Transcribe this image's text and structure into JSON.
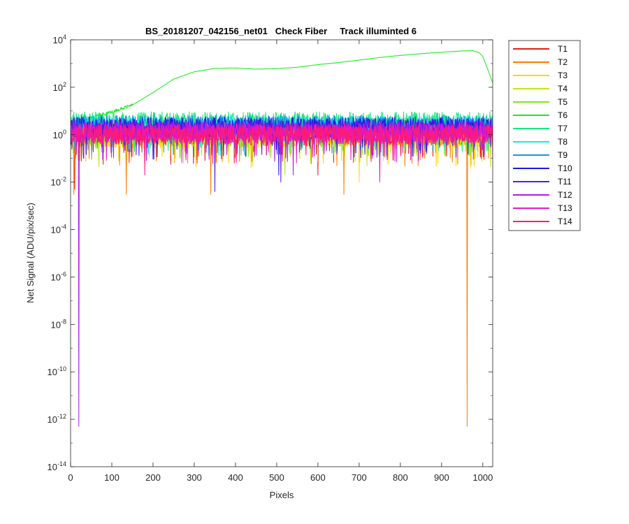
{
  "chart_data": {
    "type": "line",
    "title": "BS_20181207_042156_net01   Check Fiber     Track illuminted 6",
    "xlabel": "Pixels",
    "ylabel": "Net Signal (ADU/pix/sec)",
    "xlim": [
      0,
      1024
    ],
    "ylim": [
      1e-14,
      10000
    ],
    "yscale": "log",
    "xticks": [
      0,
      100,
      200,
      300,
      400,
      500,
      600,
      700,
      800,
      900,
      1000
    ],
    "yticks": [
      {
        "base": "10",
        "exp": "4"
      },
      {
        "base": "10",
        "exp": "2"
      },
      {
        "base": "10",
        "exp": "0"
      },
      {
        "base": "10",
        "exp": "-2"
      },
      {
        "base": "10",
        "exp": "-4"
      },
      {
        "base": "10",
        "exp": "-6"
      },
      {
        "base": "10",
        "exp": "-8"
      },
      {
        "base": "10",
        "exp": "-10"
      },
      {
        "base": "10",
        "exp": "-12"
      },
      {
        "base": "10",
        "exp": "-14"
      }
    ],
    "grid": false,
    "legend_position": "outside-right-top",
    "series": [
      {
        "name": "T1",
        "color": "#e61919",
        "profile": "noise",
        "level": 1.4,
        "dips": [
          [
            10,
            0.005
          ],
          [
            600,
            0.02
          ]
        ]
      },
      {
        "name": "T2",
        "color": "#ff7b00",
        "profile": "noise",
        "level": 1.2,
        "dips": [
          [
            8,
            0.003
          ],
          [
            135,
            0.003
          ],
          [
            340,
            0.003
          ],
          [
            663,
            0.003
          ],
          [
            962,
            5e-13
          ]
        ]
      },
      {
        "name": "T3",
        "color": "#ffd500",
        "profile": "noise",
        "level": 1.0,
        "dips": [
          [
            700,
            0.01
          ]
        ]
      },
      {
        "name": "T4",
        "color": "#bfe619",
        "profile": "noise",
        "level": 1.1,
        "dips": [
          [
            520,
            0.02
          ]
        ]
      },
      {
        "name": "T5",
        "color": "#80e619",
        "profile": "noise",
        "level": 2.5,
        "dips": []
      },
      {
        "name": "T6",
        "color": "#1aeb1a",
        "profile": "illuminated",
        "x": [
          20,
          40,
          60,
          100,
          150,
          200,
          250,
          300,
          350,
          400,
          450,
          500,
          550,
          600,
          650,
          700,
          750,
          800,
          850,
          900,
          950,
          975,
          990,
          1000,
          1010,
          1024
        ],
        "values": [
          3,
          4.5,
          6,
          9,
          18,
          60,
          220,
          450,
          620,
          650,
          580,
          610,
          700,
          900,
          1100,
          1400,
          1800,
          2200,
          2600,
          3000,
          3400,
          3500,
          3000,
          2000,
          700,
          150
        ]
      },
      {
        "name": "T7",
        "color": "#19e680",
        "profile": "noise",
        "level": 4.5,
        "dips": []
      },
      {
        "name": "T8",
        "color": "#19e6e6",
        "profile": "noise",
        "level": 3.0,
        "dips": []
      },
      {
        "name": "T9",
        "color": "#1995e6",
        "profile": "noise",
        "level": 3.2,
        "dips": []
      },
      {
        "name": "T10",
        "color": "#1919e6",
        "profile": "noise",
        "level": 2.8,
        "dips": [
          [
            505,
            0.02
          ]
        ]
      },
      {
        "name": "T11",
        "color": "#5a19e6",
        "profile": "noise",
        "level": 2.2,
        "dips": [
          [
            350,
            0.004
          ],
          [
            510,
            0.01
          ]
        ]
      },
      {
        "name": "T12",
        "color": "#b319e6",
        "profile": "noise",
        "level": 1.8,
        "dips": [
          [
            20,
            5e-13
          ],
          [
            540,
            0.02
          ]
        ]
      },
      {
        "name": "T13",
        "color": "#e619c7",
        "profile": "noise",
        "level": 1.5,
        "dips": [
          [
            750,
            0.01
          ]
        ]
      },
      {
        "name": "T14",
        "color": "#ff1a75",
        "profile": "noise",
        "level": 1.3,
        "dips": [
          [
            180,
            0.02
          ]
        ]
      }
    ]
  }
}
